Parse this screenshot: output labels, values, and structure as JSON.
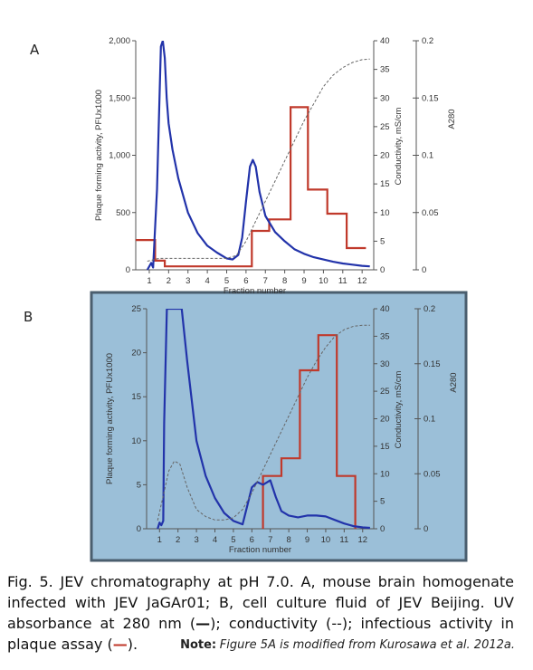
{
  "figure": {
    "caption_parts": {
      "main": "Fig. 5. JEV chromatography at pH 7.0. A, mouse brain homogenate infected with JEV JaGAr01; B, cell culture fluid of JEV Beijing. UV absorbance at 280 nm (",
      "uv_symbol": "—",
      "mid1": "); conductivity (",
      "cond_symbol": "--",
      "mid2": "); infectious activity in plaque assay (",
      "plaque_symbol": "—",
      "end": ")."
    },
    "note_label": "Note:",
    "note_text": "Figure 5A is modified from Kurosawa et al. 2012a."
  },
  "colors": {
    "uv": "#2233aa",
    "plaque": "#c0392b",
    "conductivity": "#666666",
    "panel_b_background": "#9bbfd8",
    "panel_b_border": "#4a5e6e"
  },
  "chart_data": [
    {
      "panel": "A",
      "type": "line",
      "xlabel": "Fraction number",
      "ylabel": "Plaque forming activity, PFUx1000",
      "ylabel_right1": "Conductivity, mS/cm",
      "ylabel_right2": "A280",
      "xlim": [
        0.3,
        12.6
      ],
      "x_ticks": [
        "1",
        "2",
        "3",
        "4",
        "5",
        "6",
        "7",
        "8",
        "9",
        "10",
        "11",
        "12"
      ],
      "ylim": [
        0,
        2000
      ],
      "y_ticks": [
        "0",
        "500",
        "1,000",
        "1,500",
        "2,000"
      ],
      "y_ticks_values": [
        0,
        500,
        1000,
        1500,
        2000
      ],
      "cond_lim": [
        0,
        40
      ],
      "cond_ticks": [
        "0",
        "5",
        "10",
        "15",
        "20",
        "25",
        "30",
        "35",
        "40"
      ],
      "abs_lim": [
        0,
        0.2
      ],
      "abs_ticks": [
        "0",
        "0.05",
        "0.1",
        "0.15",
        "0.2"
      ],
      "series": [
        {
          "kind": "plaque",
          "axis": "left",
          "x": [
            0.3,
            1.3,
            1.3,
            1.8,
            1.8,
            5.5,
            5.5,
            6.3,
            6.3,
            7.2,
            7.2,
            8.3,
            8.3,
            9.2,
            9.2,
            10.2,
            10.2,
            11.2,
            11.2,
            12.2
          ],
          "y": [
            260,
            260,
            80,
            80,
            30,
            30,
            30,
            30,
            340,
            340,
            440,
            440,
            1420,
            1420,
            700,
            700,
            490,
            490,
            190,
            190
          ]
        },
        {
          "kind": "uv",
          "axis": "left",
          "x": [
            0.9,
            1.0,
            1.1,
            1.2,
            1.4,
            1.6,
            1.7,
            1.8,
            1.9,
            2.0,
            2.2,
            2.5,
            3.0,
            3.5,
            4.0,
            4.5,
            5.0,
            5.3,
            5.6,
            5.8,
            6.0,
            6.2,
            6.35,
            6.5,
            6.7,
            7.0,
            7.5,
            8.0,
            8.5,
            9.0,
            9.5,
            10.0,
            10.5,
            11.0,
            11.5,
            12.0,
            12.4
          ],
          "y": [
            0,
            30,
            60,
            20,
            700,
            1950,
            2000,
            1850,
            1500,
            1280,
            1050,
            800,
            500,
            320,
            210,
            150,
            100,
            90,
            130,
            280,
            600,
            900,
            960,
            900,
            680,
            470,
            330,
            250,
            180,
            140,
            110,
            90,
            70,
            55,
            45,
            35,
            30
          ]
        },
        {
          "kind": "conductivity",
          "axis": "right",
          "x": [
            0.9,
            1.5,
            2.0,
            3.0,
            4.0,
            5.0,
            5.5,
            6.0,
            6.5,
            7.0,
            7.5,
            8.0,
            8.5,
            9.0,
            9.5,
            10.0,
            10.5,
            11.0,
            11.5,
            12.0,
            12.4
          ],
          "y": [
            1.5,
            2,
            2,
            2,
            2,
            2,
            2.5,
            5,
            8.5,
            12,
            15.5,
            19,
            22.5,
            26,
            29,
            32,
            34,
            35.3,
            36.2,
            36.7,
            36.8
          ]
        }
      ]
    },
    {
      "panel": "B",
      "type": "line",
      "xlabel": "Fraction number",
      "ylabel": "Plaque forming activity, PFUx1000",
      "ylabel_right1": "Conductivity, mS/cm",
      "ylabel_right2": "A280",
      "xlim": [
        0.3,
        12.6
      ],
      "x_ticks": [
        "1",
        "2",
        "3",
        "4",
        "5",
        "6",
        "7",
        "8",
        "9",
        "10",
        "11",
        "12"
      ],
      "ylim": [
        0,
        25
      ],
      "y_ticks": [
        "0",
        "5",
        "10",
        "15",
        "20",
        "25"
      ],
      "y_ticks_values": [
        0,
        5,
        10,
        15,
        20,
        25
      ],
      "cond_lim": [
        0,
        40
      ],
      "cond_ticks": [
        "0",
        "5",
        "10",
        "15",
        "20",
        "25",
        "30",
        "35",
        "40"
      ],
      "abs_lim": [
        0,
        0.2
      ],
      "abs_ticks": [
        "0",
        "0.05",
        "0.1",
        "0.15",
        "0.2"
      ],
      "series": [
        {
          "kind": "plaque",
          "axis": "left",
          "x": [
            6.6,
            6.6,
            7.6,
            7.6,
            8.6,
            8.6,
            9.6,
            9.6,
            10.6,
            10.6,
            11.6,
            11.6
          ],
          "y": [
            0,
            6,
            6,
            8,
            8,
            18,
            18,
            22,
            22,
            6,
            6,
            0
          ]
        },
        {
          "kind": "uv",
          "axis": "left",
          "x": [
            0.9,
            1.0,
            1.1,
            1.2,
            1.25,
            1.4,
            1.6,
            1.8,
            2.0,
            2.2,
            2.5,
            3.0,
            3.5,
            4.0,
            4.5,
            5.0,
            5.5,
            5.8,
            6.0,
            6.3,
            6.6,
            7.0,
            7.3,
            7.6,
            8.0,
            8.5,
            9.0,
            9.5,
            10.0,
            10.5,
            11.0,
            11.5,
            12.0,
            12.4
          ],
          "y": [
            0,
            0.7,
            0.4,
            0.9,
            12,
            25,
            25,
            25,
            25,
            25,
            19,
            10,
            6,
            3.5,
            1.8,
            0.9,
            0.5,
            3,
            4.7,
            5.3,
            5.0,
            5.5,
            3.6,
            2.0,
            1.5,
            1.3,
            1.5,
            1.5,
            1.4,
            1.0,
            0.6,
            0.3,
            0.15,
            0.1
          ]
        },
        {
          "kind": "conductivity",
          "axis": "right",
          "x": [
            0.9,
            1.2,
            1.5,
            1.8,
            2.1,
            2.5,
            3.0,
            3.5,
            4.0,
            4.5,
            5.0,
            5.5,
            6.0,
            6.5,
            7.0,
            7.5,
            8.0,
            8.5,
            9.0,
            9.5,
            10.0,
            10.5,
            11.0,
            11.5,
            12.0,
            12.4
          ],
          "y": [
            1.5,
            6,
            10.5,
            12.3,
            11.8,
            7.5,
            3.5,
            2.2,
            1.6,
            1.6,
            2,
            3.5,
            6.5,
            10,
            13.5,
            17,
            20.5,
            24,
            27.5,
            30.5,
            33,
            35,
            36.2,
            36.8,
            37,
            37
          ]
        }
      ]
    }
  ]
}
